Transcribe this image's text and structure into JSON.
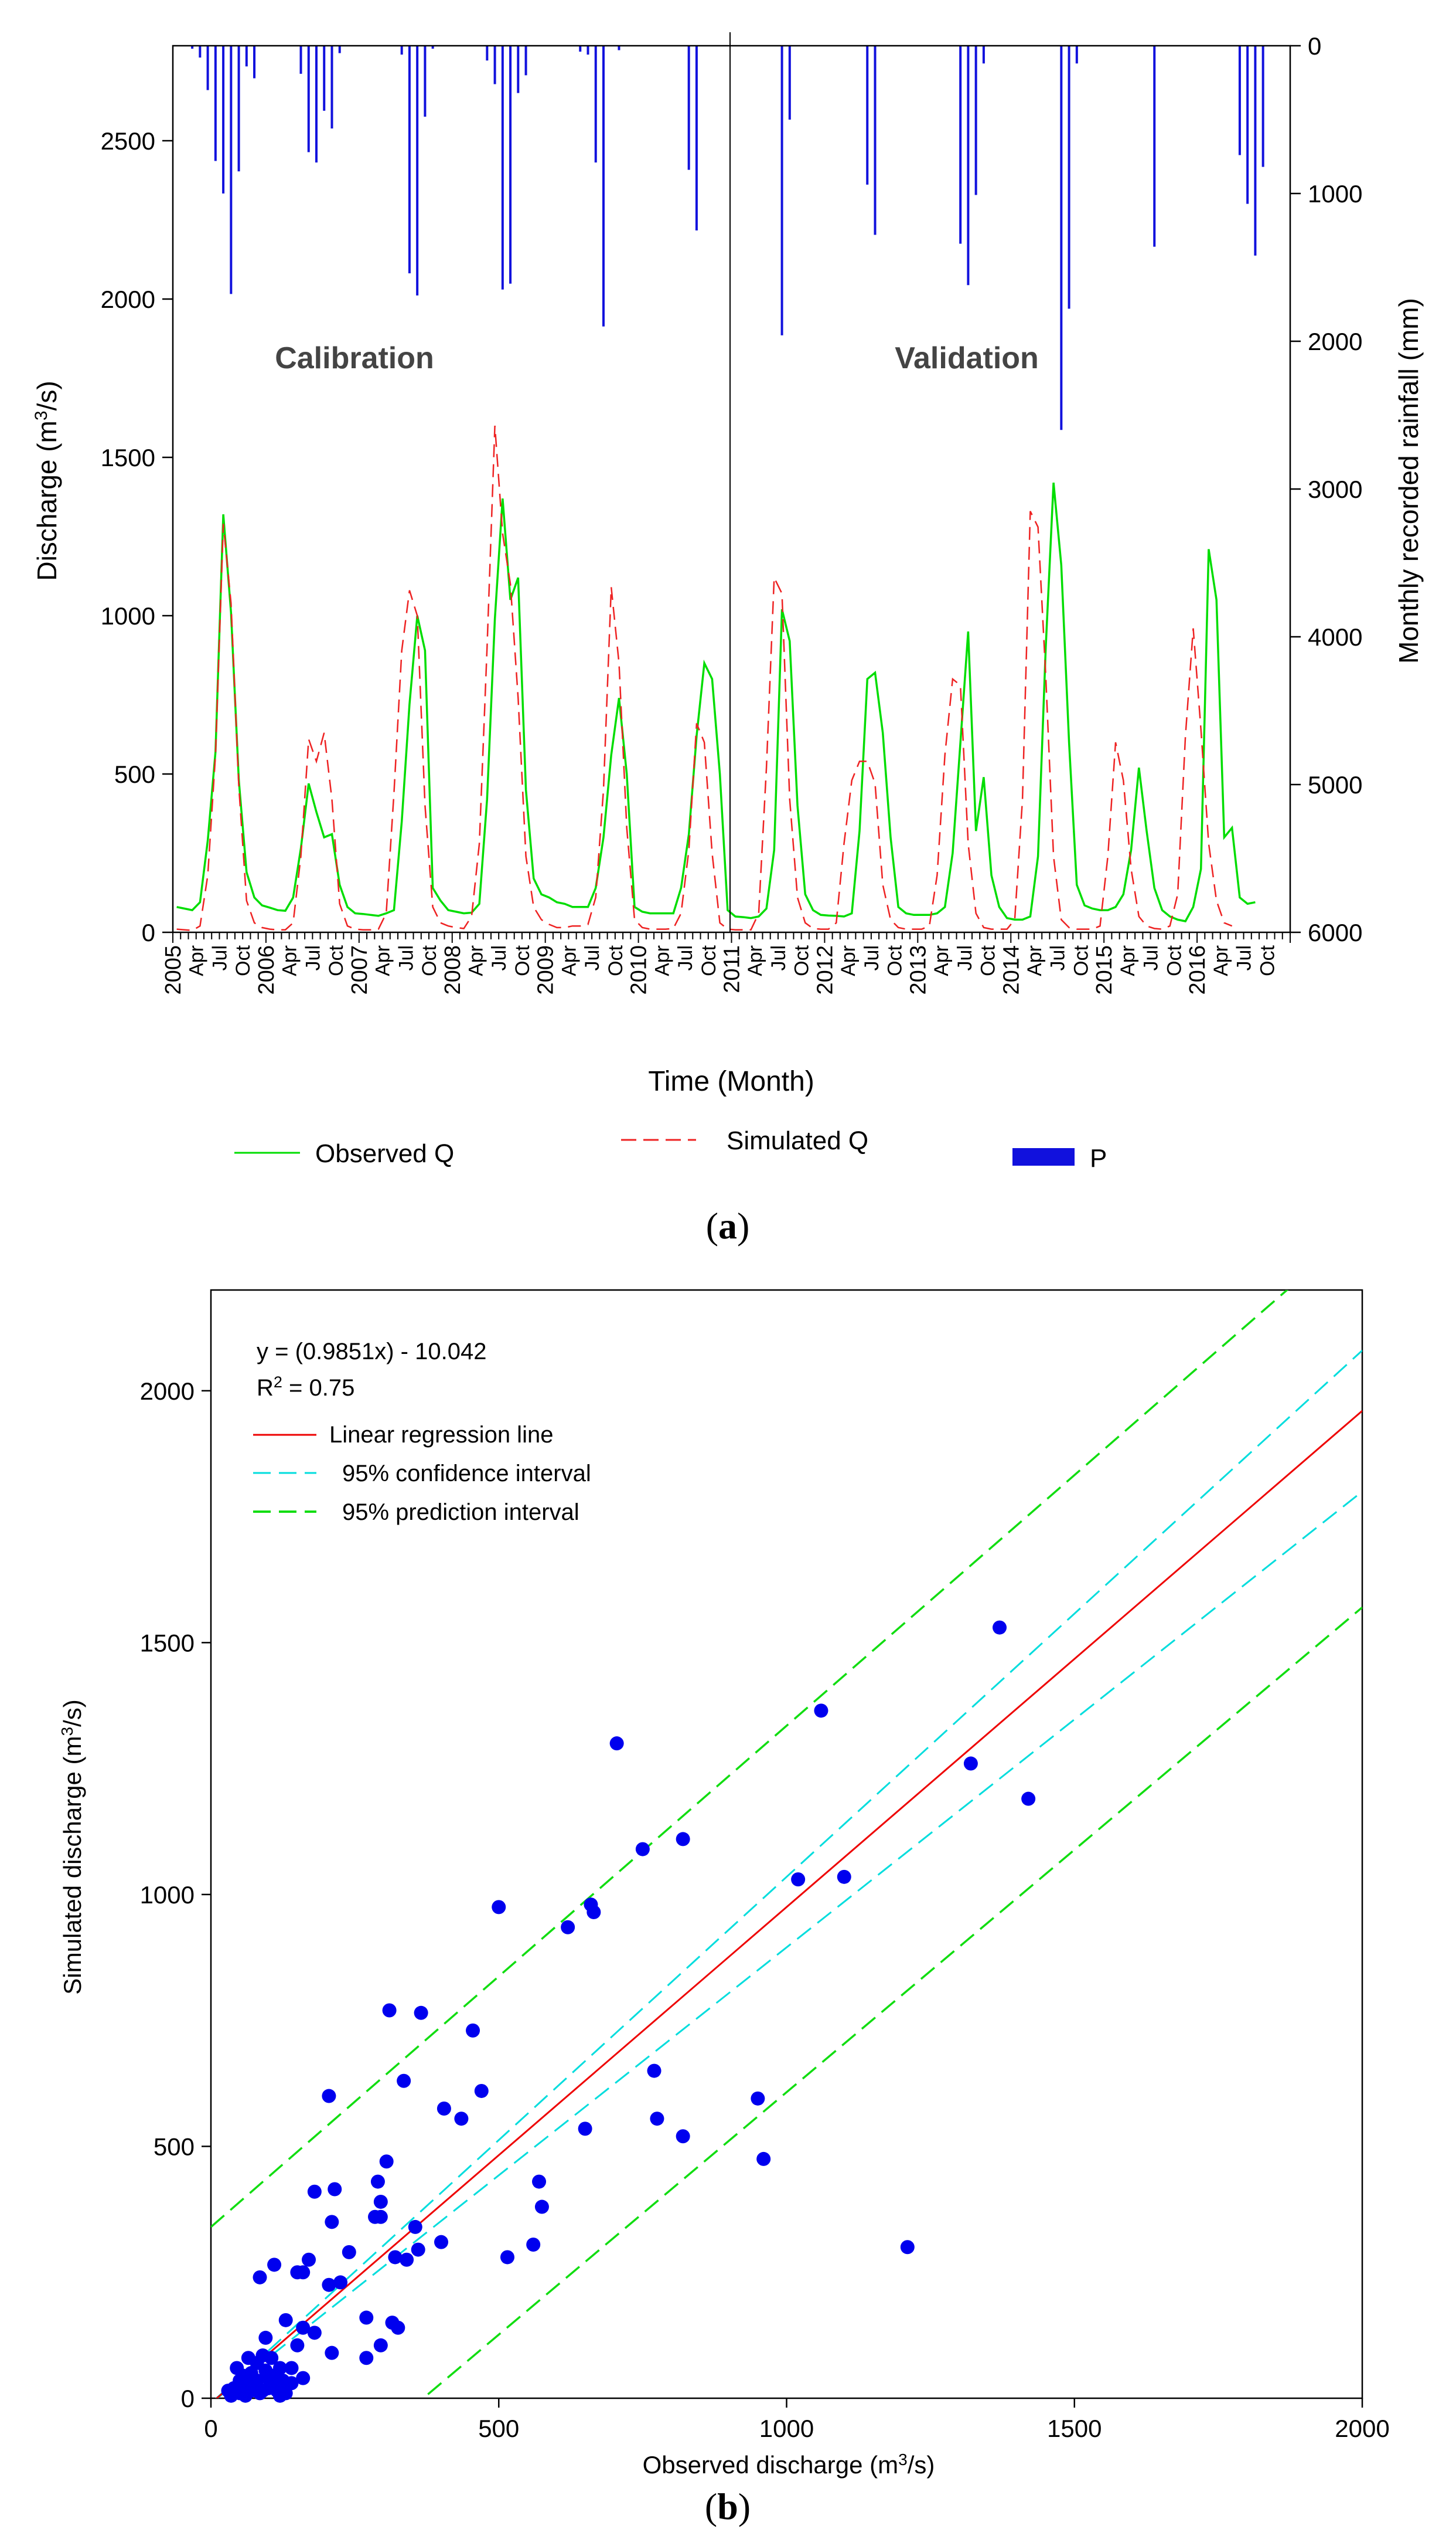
{
  "colors": {
    "observed": "#00dd00",
    "simulated": "#ee2222",
    "rainfall": "#1111dd",
    "regression": "#ee0000",
    "confidence": "#00dddd",
    "prediction": "#11dd11",
    "points": "#0000ee",
    "text_dark": "#444444",
    "axis": "#000000"
  },
  "panel_a": {
    "label": "(a)",
    "label_parts": [
      "(",
      "a",
      ")"
    ],
    "y_axis_label": "Discharge (m",
    "y_axis_label_sup": "3",
    "y_axis_label_end": "/s)",
    "y2_axis_label": "Monthly recorded rainfall (mm)",
    "x_axis_label": "Time (Month)",
    "calibration_label": "Calibration",
    "validation_label": "Validation",
    "legend": {
      "observed": "Observed Q",
      "simulated": "Simulated Q",
      "rainfall": "P"
    }
  },
  "panel_b": {
    "label": "(b)",
    "label_parts": [
      "(",
      "b",
      ")"
    ],
    "equation": "y = (0.9851x) - 10.042",
    "r2_prefix": "R",
    "r2_sup": "2",
    "r2_value": " = 0.75",
    "legend": {
      "regression": "Linear regression line",
      "confidence": "95% confidence interval",
      "prediction": "95% prediction interval"
    },
    "x_axis_label": "Observed discharge (m",
    "x_axis_label_sup": "3",
    "x_axis_label_end": "/s)",
    "y_axis_label": "Simulated discharge (m",
    "y_axis_label_sup": "3",
    "y_axis_label_end": "/s)"
  },
  "chart_data": [
    {
      "type": "line",
      "title": "",
      "xlabel": "Time (Month)",
      "ylabel": "Discharge (m3/s)",
      "y2label": "Monthly recorded rainfall (mm)",
      "ylim": [
        0,
        2800
      ],
      "y2lim": [
        6000,
        0
      ],
      "yticks": [
        0,
        500,
        1000,
        1500,
        2000,
        2500
      ],
      "y2ticks": [
        0,
        1000,
        2000,
        3000,
        4000,
        5000,
        6000
      ],
      "x_start": "2005-01",
      "x_months": 144,
      "split_month_index": 72,
      "year_ticks": [
        "2005",
        "2006",
        "2007",
        "2008",
        "2009",
        "2010",
        "2011",
        "2012",
        "2013",
        "2014",
        "2015",
        "2016"
      ],
      "month_ticks": [
        "Apr",
        "Jul",
        "Oct"
      ],
      "series": [
        {
          "name": "Observed Q",
          "style": "solid",
          "axis": "left",
          "values": [
            80,
            75,
            70,
            95,
            290,
            570,
            1320,
            1010,
            480,
            190,
            110,
            85,
            78,
            70,
            68,
            110,
            265,
            470,
            380,
            300,
            310,
            150,
            80,
            60,
            58,
            55,
            52,
            60,
            70,
            350,
            720,
            1000,
            890,
            140,
            100,
            70,
            65,
            60,
            62,
            90,
            420,
            990,
            1370,
            1050,
            1120,
            450,
            170,
            120,
            110,
            95,
            90,
            80,
            80,
            80,
            140,
            300,
            560,
            740,
            500,
            80,
            65,
            60,
            60,
            60,
            60,
            140,
            310,
            620,
            850,
            800,
            500,
            70,
            50,
            48,
            45,
            50,
            75,
            260,
            1020,
            920,
            400,
            120,
            70,
            55,
            53,
            52,
            50,
            60,
            320,
            800,
            820,
            630,
            300,
            80,
            60,
            55,
            55,
            55,
            60,
            80,
            250,
            600,
            950,
            320,
            490,
            180,
            80,
            45,
            40,
            40,
            50,
            240,
            900,
            1420,
            1160,
            600,
            150,
            85,
            75,
            70,
            70,
            80,
            120,
            260,
            520,
            320,
            140,
            70,
            50,
            40,
            35,
            80,
            200,
            1210,
            1050,
            300,
            330,
            110,
            90,
            95
          ]
        },
        {
          "name": "Simulated Q",
          "style": "dashed",
          "axis": "left",
          "values": [
            10,
            8,
            6,
            20,
            180,
            560,
            1290,
            1040,
            460,
            100,
            30,
            15,
            10,
            8,
            8,
            30,
            240,
            610,
            540,
            630,
            420,
            90,
            20,
            10,
            8,
            8,
            10,
            60,
            440,
            890,
            1080,
            1000,
            400,
            80,
            30,
            20,
            15,
            12,
            50,
            280,
            900,
            1600,
            1260,
            1100,
            740,
            240,
            80,
            40,
            25,
            15,
            15,
            20,
            20,
            25,
            110,
            450,
            1090,
            850,
            330,
            40,
            15,
            10,
            10,
            10,
            12,
            60,
            260,
            660,
            600,
            250,
            30,
            10,
            8,
            8,
            8,
            60,
            520,
            1120,
            1070,
            420,
            110,
            30,
            12,
            10,
            10,
            30,
            280,
            480,
            540,
            540,
            470,
            150,
            40,
            15,
            10,
            10,
            10,
            20,
            180,
            560,
            800,
            780,
            280,
            60,
            15,
            10,
            10,
            10,
            40,
            420,
            1330,
            1280,
            810,
            240,
            40,
            15,
            10,
            10,
            10,
            20,
            240,
            600,
            480,
            200,
            50,
            20,
            12,
            10,
            20,
            120,
            620,
            960,
            640,
            280,
            100,
            30,
            20
          ]
        },
        {
          "name": "P",
          "type": "bar",
          "axis": "right",
          "values": [
            0,
            0,
            20,
            80,
            300,
            780,
            1000,
            1680,
            850,
            140,
            220,
            0,
            0,
            0,
            0,
            0,
            190,
            720,
            790,
            440,
            560,
            50,
            0,
            0,
            0,
            0,
            0,
            0,
            0,
            60,
            1540,
            1690,
            480,
            20,
            0,
            0,
            0,
            0,
            0,
            0,
            100,
            260,
            1650,
            1610,
            320,
            200,
            0,
            0,
            0,
            0,
            0,
            0,
            40,
            60,
            790,
            1900,
            0,
            30,
            0,
            0,
            0,
            0,
            0,
            0,
            0,
            0,
            840,
            1250,
            0,
            0,
            0,
            0,
            0,
            0,
            0,
            0,
            0,
            0,
            1960,
            500,
            0,
            0,
            0,
            0,
            0,
            0,
            0,
            0,
            0,
            940,
            1280,
            0,
            0,
            0,
            0,
            0,
            0,
            0,
            0,
            0,
            0,
            1340,
            1620,
            1010,
            120,
            0,
            0,
            0,
            0,
            0,
            0,
            0,
            0,
            0,
            2600,
            1780,
            120,
            0,
            0,
            0,
            0,
            0,
            0,
            0,
            0,
            0,
            1360,
            0,
            0,
            0,
            0,
            0,
            0,
            0,
            0,
            0,
            0,
            740,
            1070,
            1420,
            820,
            0,
            0,
            0
          ]
        }
      ],
      "annotations": [
        "Calibration",
        "Validation"
      ],
      "legend": [
        "Observed Q",
        "Simulated Q",
        "P"
      ],
      "legend_placement": "bottom"
    },
    {
      "type": "scatter",
      "title": "",
      "xlabel": "Observed discharge (m3/s)",
      "ylabel": "Simulated discharge (m3/s)",
      "xlim": [
        0,
        2000
      ],
      "ylim": [
        0,
        2200
      ],
      "xticks": [
        0,
        500,
        1000,
        1500,
        2000
      ],
      "yticks": [
        0,
        500,
        1000,
        1500,
        2000
      ],
      "regression": {
        "slope": 0.9851,
        "intercept": -10.042,
        "r2": 0.75
      },
      "confidence_band": {
        "left": {
          "y_at_0": -10,
          "y_at_2000": 2080
        },
        "right": {
          "y_at_0": -10,
          "y_at_2000": 1800
        }
      },
      "prediction_band": {
        "upper": {
          "y_at_0": 340,
          "y_at_2000": 2330
        },
        "lower": {
          "y_at_0": -355,
          "y_at_2000": 1570
        }
      },
      "legend": [
        "Linear regression line",
        "95% confidence interval",
        "95% prediction interval"
      ],
      "legend_placement": "top-left",
      "points": [
        [
          1370,
          1530
        ],
        [
          1060,
          1365
        ],
        [
          705,
          1300
        ],
        [
          1320,
          1260
        ],
        [
          1420,
          1190
        ],
        [
          820,
          1110
        ],
        [
          750,
          1090
        ],
        [
          1020,
          1030
        ],
        [
          1100,
          1035
        ],
        [
          500,
          975
        ],
        [
          660,
          980
        ],
        [
          665,
          965
        ],
        [
          620,
          935
        ],
        [
          310,
          770
        ],
        [
          365,
          765
        ],
        [
          455,
          730
        ],
        [
          770,
          650
        ],
        [
          335,
          630
        ],
        [
          205,
          600
        ],
        [
          470,
          610
        ],
        [
          950,
          595
        ],
        [
          405,
          575
        ],
        [
          775,
          555
        ],
        [
          435,
          555
        ],
        [
          650,
          535
        ],
        [
          820,
          520
        ],
        [
          960,
          475
        ],
        [
          305,
          470
        ],
        [
          290,
          430
        ],
        [
          570,
          430
        ],
        [
          215,
          415
        ],
        [
          180,
          410
        ],
        [
          295,
          390
        ],
        [
          575,
          380
        ],
        [
          285,
          360
        ],
        [
          295,
          360
        ],
        [
          355,
          340
        ],
        [
          210,
          350
        ],
        [
          400,
          310
        ],
        [
          560,
          305
        ],
        [
          1210,
          300
        ],
        [
          240,
          290
        ],
        [
          360,
          295
        ],
        [
          515,
          280
        ],
        [
          320,
          280
        ],
        [
          340,
          275
        ],
        [
          170,
          275
        ],
        [
          110,
          265
        ],
        [
          150,
          250
        ],
        [
          160,
          250
        ],
        [
          85,
          240
        ],
        [
          225,
          230
        ],
        [
          205,
          225
        ],
        [
          315,
          150
        ],
        [
          325,
          140
        ],
        [
          160,
          140
        ],
        [
          270,
          160
        ],
        [
          130,
          155
        ],
        [
          180,
          130
        ],
        [
          95,
          120
        ],
        [
          150,
          105
        ],
        [
          295,
          105
        ],
        [
          210,
          90
        ],
        [
          270,
          80
        ],
        [
          140,
          60
        ],
        [
          160,
          40
        ],
        [
          40,
          20
        ],
        [
          50,
          10
        ],
        [
          60,
          30
        ],
        [
          70,
          50
        ],
        [
          80,
          70
        ],
        [
          90,
          15
        ],
        [
          100,
          40
        ],
        [
          110,
          25
        ],
        [
          120,
          60
        ],
        [
          130,
          10
        ],
        [
          140,
          30
        ],
        [
          65,
          80
        ],
        [
          75,
          20
        ],
        [
          55,
          45
        ],
        [
          45,
          60
        ],
        [
          85,
          10
        ],
        [
          95,
          55
        ],
        [
          105,
          80
        ],
        [
          115,
          15
        ],
        [
          125,
          35
        ],
        [
          35,
          5
        ],
        [
          60,
          5
        ],
        [
          70,
          15
        ],
        [
          80,
          35
        ],
        [
          90,
          85
        ],
        [
          100,
          20
        ],
        [
          110,
          45
        ],
        [
          120,
          5
        ],
        [
          30,
          15
        ],
        [
          50,
          35
        ]
      ]
    }
  ]
}
